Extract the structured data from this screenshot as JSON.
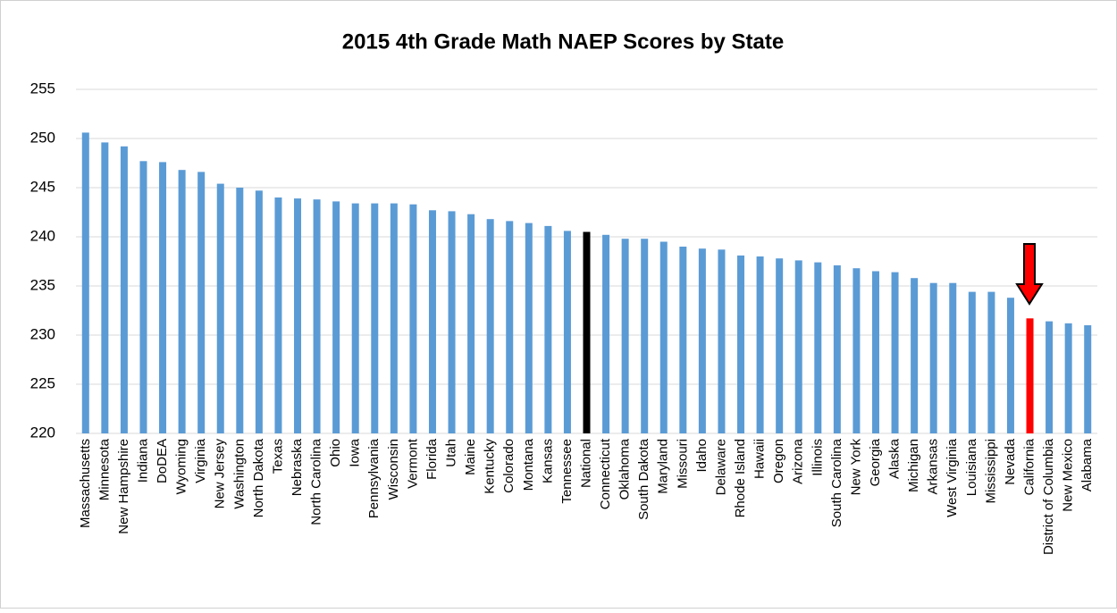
{
  "chart_data": {
    "type": "bar",
    "title": "2015 4th Grade Math NAEP Scores by State",
    "categories": [
      "Massachusetts",
      "Minnesota",
      "New Hampshire",
      "Indiana",
      "DoDEA",
      "Wyoming",
      "Virginia",
      "New Jersey",
      "Washington",
      "North Dakota",
      "Texas",
      "Nebraska",
      "North Carolina",
      "Ohio",
      "Iowa",
      "Pennsylvania",
      "Wisconsin",
      "Vermont",
      "Florida",
      "Utah",
      "Maine",
      "Kentucky",
      "Colorado",
      "Montana",
      "Kansas",
      "Tennessee",
      "National",
      "Connecticut",
      "Oklahoma",
      "South Dakota",
      "Maryland",
      "Missouri",
      "Idaho",
      "Delaware",
      "Rhode Island",
      "Hawaii",
      "Oregon",
      "Arizona",
      "Illinois",
      "South Carolina",
      "New York",
      "Georgia",
      "Alaska",
      "Michigan",
      "Arkansas",
      "West Virginia",
      "Louisiana",
      "Mississippi",
      "Nevada",
      "California",
      "District of Columbia",
      "New Mexico",
      "Alabama"
    ],
    "values": [
      250.6,
      249.6,
      249.2,
      247.7,
      247.6,
      246.8,
      246.6,
      245.4,
      245.0,
      244.7,
      244.0,
      243.9,
      243.8,
      243.6,
      243.4,
      243.4,
      243.4,
      243.3,
      242.7,
      242.6,
      242.3,
      241.8,
      241.6,
      241.4,
      241.1,
      240.6,
      240.5,
      240.2,
      239.8,
      239.8,
      239.5,
      239.0,
      238.8,
      238.7,
      238.1,
      238.0,
      237.8,
      237.6,
      237.4,
      237.1,
      236.8,
      236.5,
      236.4,
      235.8,
      235.3,
      235.3,
      234.4,
      234.4,
      233.8,
      231.7,
      231.4,
      231.2,
      231.0
    ],
    "color": "#5b9bd5",
    "highlight_colors": {
      "26": "#000000",
      "49": "#ff0000"
    },
    "ylim": [
      220,
      255
    ],
    "yticks": [
      220,
      225,
      230,
      235,
      240,
      245,
      250,
      255
    ],
    "grid": true
  }
}
